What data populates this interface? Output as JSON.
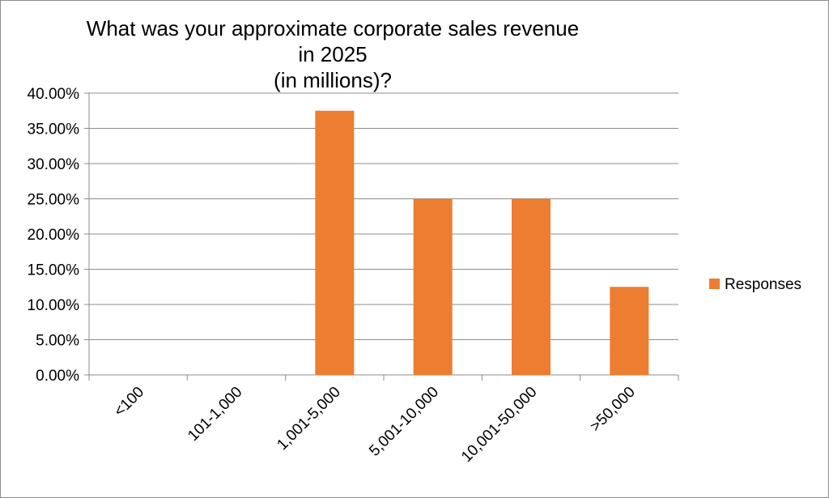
{
  "chart_data": {
    "type": "bar",
    "title": "What was your approximate corporate sales revenue in 2025\n(in millions)?",
    "categories": [
      "<100",
      "101-1,000",
      "1,001-5,000",
      "5,001-10,000",
      "10,001-50,000",
      ">50,000"
    ],
    "series": [
      {
        "name": "Responses",
        "values": [
          0,
          0,
          0.375,
          0.25,
          0.25,
          0.125
        ],
        "color": "#ED7D31"
      }
    ],
    "ylim": [
      0,
      0.4
    ],
    "yticks": [
      0,
      0.05,
      0.1,
      0.15,
      0.2,
      0.25,
      0.3,
      0.35,
      0.4
    ],
    "ytick_labels": [
      "0.00%",
      "5.00%",
      "10.00%",
      "15.00%",
      "20.00%",
      "25.00%",
      "30.00%",
      "35.00%",
      "40.00%"
    ],
    "grid": true,
    "legend": "right",
    "xlabel": "",
    "ylabel": ""
  }
}
